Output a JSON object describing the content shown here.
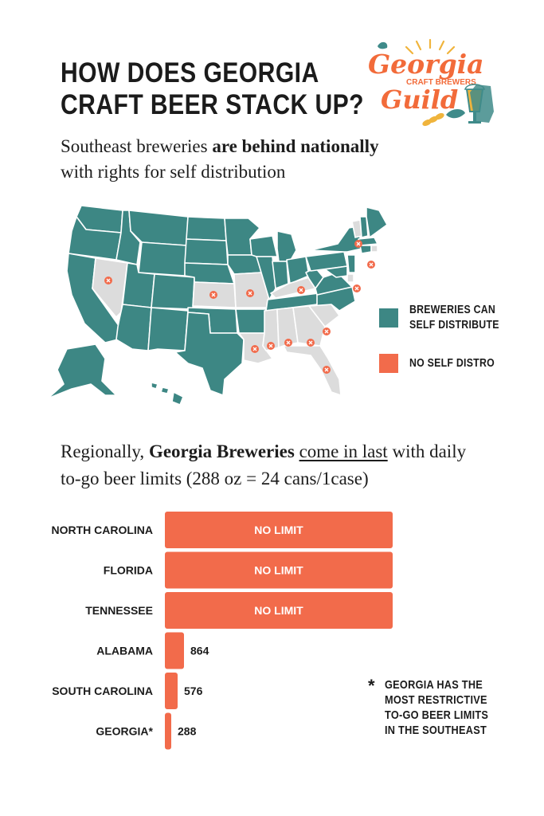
{
  "title": {
    "line1": "HOW DOES GEORGIA",
    "line2": "CRAFT BEER STACK UP?"
  },
  "logo": {
    "line1": "Georgia",
    "line2": "CRAFT BREWERS",
    "line3": "Guild",
    "colors": {
      "orange": "#f26b3a",
      "teal": "#3f8b8a",
      "gold": "#f0b43c"
    }
  },
  "subhead": {
    "part1": "Southeast breweries ",
    "bold": "are behind nationally",
    "line2": "with rights for self distribution"
  },
  "map": {
    "colors": {
      "self_distribute": "#3d8784",
      "no_self_distro": "#dcdcdc",
      "marker": "#f26b4b"
    }
  },
  "legend": {
    "items": [
      {
        "label": "BREWERIES CAN SELF DISTRIBUTE",
        "color": "#3d8784"
      },
      {
        "label": "NO SELF DISTRO",
        "color": "#f26b4b"
      }
    ]
  },
  "region_text": {
    "part1": "Regionally, ",
    "bold": "Georgia Breweries",
    "space": " ",
    "underline": "come in last",
    "part2": " with daily",
    "line2": "to-go beer limits (288 oz = 24 cans/1case)"
  },
  "chart_data": {
    "type": "bar",
    "orientation": "horizontal",
    "bar_color": "#f26b4b",
    "categories": [
      "NORTH CAROLINA",
      "FLORIDA",
      "TENNESSEE",
      "ALABAMA",
      "SOUTH CAROLINA",
      "GEORGIA*"
    ],
    "values": [
      null,
      null,
      null,
      864,
      576,
      288
    ],
    "labels": [
      "NO LIMIT",
      "NO LIMIT",
      "NO LIMIT",
      "864",
      "576",
      "288"
    ],
    "unit": "oz"
  },
  "note": {
    "star": "*",
    "text": "GEORGIA HAS THE MOST RESTRICTIVE TO-GO BEER LIMITS IN THE SOUTHEAST"
  }
}
